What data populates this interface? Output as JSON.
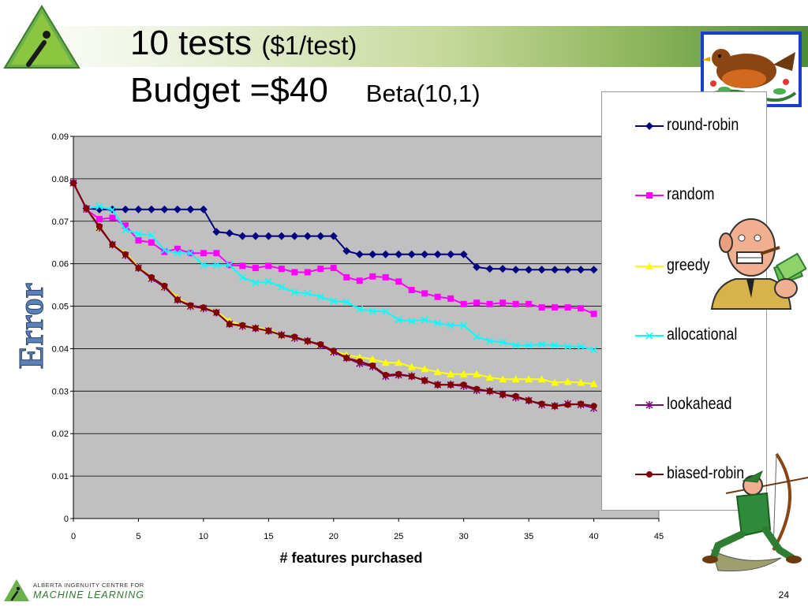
{
  "slide": {
    "title_line1": "10 tests",
    "title_line1_suffix": "($1/test)",
    "title_line2": "Budget =$40",
    "title_line2_suffix": "Beta(10,1)",
    "page_number": "24",
    "footer_logo_line1": "ALBERTA INGENUITY CENTRE FOR",
    "footer_logo_line2": "MACHINE LEARNING"
  },
  "chart_data": {
    "type": "line",
    "xlabel": "# features purchased",
    "ylabel": "Error",
    "xlim": [
      0,
      45
    ],
    "ylim": [
      0,
      0.09
    ],
    "x_ticks": [
      "0",
      "5",
      "10",
      "15",
      "20",
      "25",
      "30",
      "35",
      "40",
      "45"
    ],
    "y_ticks": [
      "0",
      "0.01",
      "0.02",
      "0.03",
      "0.04",
      "0.05",
      "0.06",
      "0.07",
      "0.08",
      "0.09"
    ],
    "grid": "horizontal",
    "legend_position": "right",
    "plot_background": "#c0c0c0",
    "x": [
      0,
      1,
      2,
      3,
      4,
      5,
      6,
      7,
      8,
      9,
      10,
      11,
      12,
      13,
      14,
      15,
      16,
      17,
      18,
      19,
      20,
      21,
      22,
      23,
      24,
      25,
      26,
      27,
      28,
      29,
      30,
      31,
      32,
      33,
      34,
      35,
      36,
      37,
      38,
      39,
      40
    ],
    "series": [
      {
        "name": "round-robin",
        "color": "#000080",
        "marker": "diamond",
        "values": [
          0.079,
          0.073,
          0.0728,
          0.0728,
          0.0728,
          0.0728,
          0.0728,
          0.0728,
          0.0728,
          0.0728,
          0.0728,
          0.0675,
          0.0672,
          0.0665,
          0.0665,
          0.0665,
          0.0665,
          0.0665,
          0.0665,
          0.0665,
          0.0665,
          0.063,
          0.0622,
          0.0622,
          0.0622,
          0.0622,
          0.0622,
          0.0622,
          0.0622,
          0.0622,
          0.0622,
          0.0592,
          0.0588,
          0.0588,
          0.0586,
          0.0586,
          0.0586,
          0.0586,
          0.0586,
          0.0586,
          0.0586
        ]
      },
      {
        "name": "random",
        "color": "#ff00ff",
        "marker": "square",
        "values": [
          0.079,
          0.0728,
          0.0705,
          0.0708,
          0.069,
          0.0655,
          0.065,
          0.0628,
          0.0635,
          0.0625,
          0.0625,
          0.0625,
          0.0597,
          0.0595,
          0.059,
          0.0595,
          0.0588,
          0.058,
          0.058,
          0.0588,
          0.059,
          0.0568,
          0.056,
          0.057,
          0.0568,
          0.0558,
          0.0538,
          0.053,
          0.0522,
          0.0518,
          0.0505,
          0.0508,
          0.0505,
          0.0508,
          0.0505,
          0.0505,
          0.0497,
          0.0497,
          0.0497,
          0.0495,
          0.0482
        ]
      },
      {
        "name": "greedy",
        "color": "#ffff00",
        "marker": "triangle",
        "values": [
          0.079,
          0.073,
          0.0685,
          0.0645,
          0.0625,
          0.0592,
          0.0568,
          0.0548,
          0.052,
          0.0502,
          0.0497,
          0.0487,
          0.0465,
          0.0455,
          0.045,
          0.0445,
          0.0432,
          0.0428,
          0.0418,
          0.041,
          0.0395,
          0.0385,
          0.038,
          0.0375,
          0.0367,
          0.0367,
          0.0357,
          0.0352,
          0.0345,
          0.034,
          0.034,
          0.034,
          0.0332,
          0.0328,
          0.0328,
          0.0328,
          0.0328,
          0.032,
          0.0322,
          0.032,
          0.0317
        ]
      },
      {
        "name": "allocational",
        "color": "#00ffff",
        "marker": "x",
        "values": [
          0.079,
          0.073,
          0.0735,
          0.0727,
          0.068,
          0.067,
          0.0667,
          0.0632,
          0.0625,
          0.0625,
          0.0597,
          0.0597,
          0.0597,
          0.0568,
          0.0555,
          0.0558,
          0.0545,
          0.0533,
          0.053,
          0.0522,
          0.0512,
          0.051,
          0.0493,
          0.0488,
          0.0488,
          0.0468,
          0.0465,
          0.0468,
          0.046,
          0.0455,
          0.0455,
          0.0428,
          0.0418,
          0.0415,
          0.0408,
          0.0408,
          0.041,
          0.0408,
          0.0405,
          0.0405,
          0.0397
        ]
      },
      {
        "name": "lookahead",
        "color": "#800080",
        "marker": "asterisk",
        "values": [
          0.079,
          0.073,
          0.0685,
          0.0645,
          0.062,
          0.059,
          0.0565,
          0.0545,
          0.0515,
          0.05,
          0.0495,
          0.0485,
          0.0458,
          0.0453,
          0.0448,
          0.0442,
          0.0432,
          0.0425,
          0.0418,
          0.0408,
          0.0392,
          0.0378,
          0.0365,
          0.0358,
          0.0335,
          0.0338,
          0.0335,
          0.0325,
          0.0315,
          0.0315,
          0.0312,
          0.0302,
          0.03,
          0.0292,
          0.0285,
          0.0278,
          0.0268,
          0.0265,
          0.027,
          0.0268,
          0.026
        ]
      },
      {
        "name": "biased-robin",
        "color": "#800000",
        "marker": "circle",
        "values": [
          0.079,
          0.073,
          0.0688,
          0.0645,
          0.0622,
          0.059,
          0.0568,
          0.0548,
          0.0515,
          0.0502,
          0.0497,
          0.0485,
          0.0458,
          0.0455,
          0.0448,
          0.0442,
          0.0432,
          0.0428,
          0.0418,
          0.041,
          0.0395,
          0.0378,
          0.037,
          0.036,
          0.0338,
          0.034,
          0.0335,
          0.0325,
          0.0315,
          0.0315,
          0.0315,
          0.0305,
          0.03,
          0.0292,
          0.0288,
          0.0278,
          0.027,
          0.0265,
          0.0268,
          0.027,
          0.0265
        ]
      }
    ]
  },
  "icons": {
    "top_logo": "triangle-logo-icon",
    "bird": "bird-icon",
    "bald_man": "bald-man-money-icon",
    "archer": "archer-icon",
    "footer_logo": "aicml-logo-icon"
  }
}
